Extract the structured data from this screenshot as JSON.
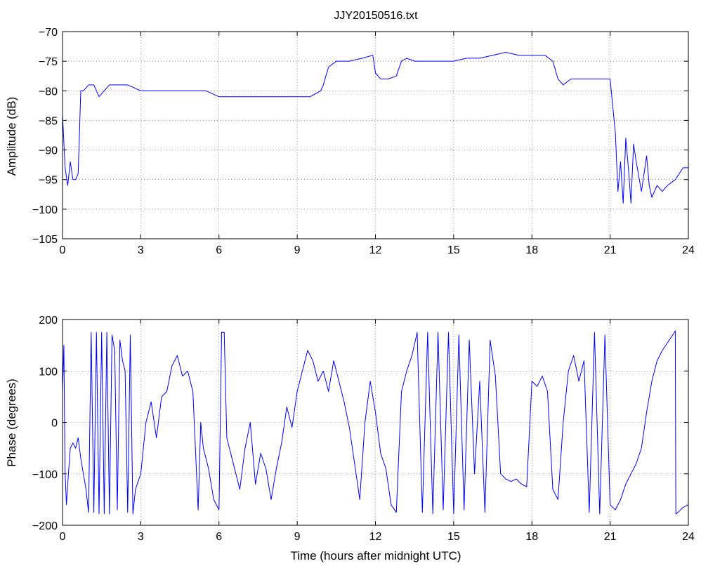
{
  "chart_data": [
    {
      "type": "line",
      "title": "JJY20150516.txt",
      "xlabel": "",
      "ylabel": "Amplitude (dB)",
      "xlim": [
        0,
        24
      ],
      "ylim": [
        -105,
        -70
      ],
      "xticks": [
        0,
        3,
        6,
        9,
        12,
        15,
        18,
        21,
        24
      ],
      "yticks": [
        -105,
        -100,
        -95,
        -90,
        -85,
        -80,
        -75,
        -70
      ],
      "grid": true,
      "series": [
        {
          "name": "",
          "color": "#0000ff",
          "x": [
            0,
            0.1,
            0.2,
            0.3,
            0.4,
            0.5,
            0.6,
            0.7,
            0.8,
            1.0,
            1.2,
            1.4,
            1.6,
            1.8,
            2.0,
            2.5,
            3.0,
            3.5,
            4.0,
            4.5,
            5.0,
            5.5,
            6.0,
            6.5,
            7.0,
            7.5,
            8.0,
            8.5,
            9.0,
            9.5,
            9.9,
            10.0,
            10.2,
            10.5,
            11.0,
            11.5,
            11.9,
            12.0,
            12.2,
            12.5,
            12.8,
            13.0,
            13.2,
            13.5,
            14.0,
            14.5,
            15.0,
            15.5,
            16.0,
            16.5,
            17.0,
            17.5,
            18.0,
            18.5,
            18.8,
            19.0,
            19.2,
            19.5,
            20.0,
            20.5,
            21.0,
            21.2,
            21.3,
            21.4,
            21.5,
            21.6,
            21.7,
            21.8,
            21.9,
            22.0,
            22.2,
            22.4,
            22.5,
            22.6,
            22.8,
            23.0,
            23.2,
            23.5,
            23.8,
            24.0
          ],
          "y": [
            -84,
            -93,
            -96,
            -92,
            -95,
            -95,
            -94,
            -80,
            -80,
            -79,
            -79,
            -81,
            -80,
            -79,
            -79,
            -79,
            -80,
            -80,
            -80,
            -80,
            -80,
            -80,
            -81,
            -81,
            -81,
            -81,
            -81,
            -81,
            -81,
            -81,
            -80,
            -79,
            -76,
            -75,
            -75,
            -74.5,
            -74,
            -77,
            -78,
            -78,
            -77.5,
            -75,
            -74.5,
            -75,
            -75,
            -75,
            -75,
            -74.5,
            -74.5,
            -74,
            -73.5,
            -74,
            -74,
            -74,
            -75,
            -78,
            -79,
            -78,
            -78,
            -78,
            -78,
            -87,
            -97,
            -92,
            -99,
            -88,
            -93,
            -99,
            -89,
            -92,
            -97,
            -91,
            -96,
            -98,
            -96,
            -97,
            -96,
            -95,
            -93,
            -93
          ]
        }
      ]
    },
    {
      "type": "line",
      "title": "",
      "xlabel": "Time (hours after midnight UTC)",
      "ylabel": "Phase (degrees)",
      "xlim": [
        0,
        24
      ],
      "ylim": [
        -200,
        200
      ],
      "xticks": [
        0,
        3,
        6,
        9,
        12,
        15,
        18,
        21,
        24
      ],
      "yticks": [
        -200,
        -100,
        0,
        100,
        200
      ],
      "grid": true,
      "series": [
        {
          "name": "",
          "color": "#0000ff",
          "x": [
            0,
            0.05,
            0.1,
            0.15,
            0.2,
            0.3,
            0.4,
            0.5,
            0.6,
            0.7,
            0.8,
            0.9,
            1.0,
            1.1,
            1.2,
            1.3,
            1.4,
            1.5,
            1.6,
            1.7,
            1.8,
            1.9,
            2.0,
            2.1,
            2.2,
            2.3,
            2.4,
            2.5,
            2.6,
            2.7,
            2.8,
            3.0,
            3.2,
            3.4,
            3.6,
            3.8,
            4.0,
            4.2,
            4.4,
            4.6,
            4.8,
            5.0,
            5.2,
            5.3,
            5.4,
            5.6,
            5.8,
            6.0,
            6.1,
            6.2,
            6.3,
            6.4,
            6.6,
            6.8,
            7.0,
            7.2,
            7.4,
            7.6,
            7.8,
            8.0,
            8.2,
            8.4,
            8.6,
            8.8,
            9.0,
            9.2,
            9.4,
            9.6,
            9.8,
            10.0,
            10.2,
            10.4,
            10.6,
            10.8,
            11.0,
            11.2,
            11.4,
            11.6,
            11.8,
            12.0,
            12.2,
            12.4,
            12.6,
            12.8,
            13.0,
            13.2,
            13.4,
            13.6,
            13.8,
            14.0,
            14.2,
            14.4,
            14.6,
            14.8,
            15.0,
            15.2,
            15.4,
            15.6,
            15.8,
            16.0,
            16.2,
            16.4,
            16.6,
            16.8,
            17.0,
            17.2,
            17.4,
            17.6,
            17.8,
            18.0,
            18.2,
            18.4,
            18.6,
            18.8,
            19.0,
            19.2,
            19.4,
            19.6,
            19.8,
            20.0,
            20.2,
            20.4,
            20.6,
            20.8,
            21.0,
            21.2,
            21.4,
            21.6,
            21.8,
            22.0,
            22.2,
            22.4,
            22.6,
            22.8,
            23.0,
            23.2,
            23.4,
            23.5,
            23.52,
            23.6,
            23.8,
            24.0
          ],
          "y": [
            60,
            150,
            -100,
            -160,
            -120,
            -50,
            -40,
            -50,
            -30,
            -70,
            -100,
            -130,
            -175,
            175,
            -175,
            175,
            -178,
            175,
            -178,
            175,
            -178,
            170,
            140,
            -170,
            160,
            120,
            100,
            -175,
            170,
            -178,
            -130,
            -100,
            0,
            40,
            -30,
            50,
            60,
            110,
            130,
            90,
            100,
            60,
            -170,
            0,
            -50,
            -90,
            -150,
            -170,
            175,
            175,
            -30,
            -50,
            -90,
            -130,
            -50,
            0,
            -120,
            -60,
            -90,
            -150,
            -90,
            -40,
            30,
            -10,
            60,
            100,
            140,
            120,
            80,
            100,
            60,
            120,
            80,
            40,
            -10,
            -80,
            -150,
            0,
            80,
            20,
            -60,
            -90,
            -160,
            -175,
            60,
            100,
            130,
            175,
            -175,
            175,
            -178,
            175,
            -170,
            175,
            -178,
            170,
            -170,
            160,
            -100,
            80,
            -175,
            160,
            90,
            -100,
            -110,
            -115,
            -110,
            -120,
            -125,
            80,
            70,
            90,
            60,
            -130,
            -150,
            0,
            100,
            130,
            80,
            120,
            -175,
            175,
            -178,
            170,
            -160,
            -170,
            -150,
            -120,
            -100,
            -80,
            -50,
            20,
            80,
            120,
            140,
            155,
            170,
            178,
            -178,
            -175,
            -165,
            -160
          ]
        }
      ]
    }
  ]
}
